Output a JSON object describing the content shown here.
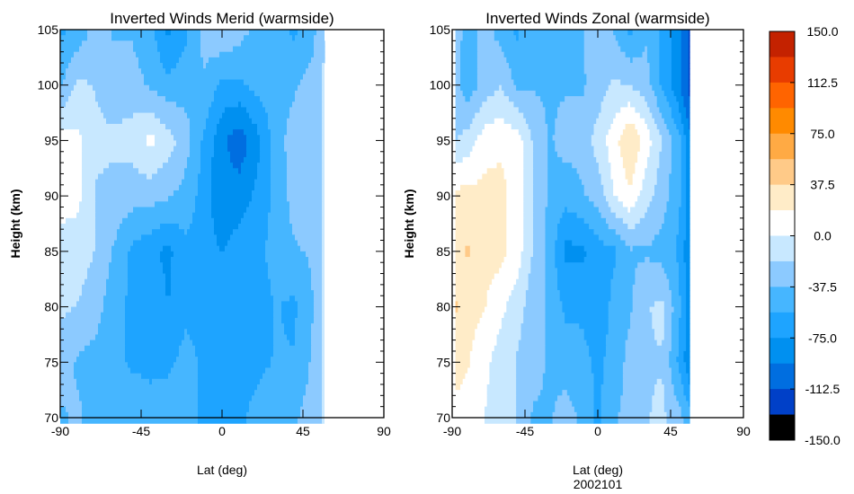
{
  "chart_data": [
    {
      "type": "heatmap",
      "title": "Inverted Winds Merid (warmside)",
      "xlabel": "Lat (deg)",
      "ylabel": "Height (km)",
      "xlim": [
        -90,
        90
      ],
      "ylim": [
        70,
        105
      ],
      "xticks": [
        "-90",
        "-45",
        "0",
        "45",
        "90"
      ],
      "yticks": [
        "70",
        "75",
        "80",
        "85",
        "90",
        "95",
        "100",
        "105"
      ],
      "lat": [
        -90,
        -80,
        -70,
        -60,
        -50,
        -40,
        -30,
        -20,
        -10,
        0,
        10,
        20,
        30,
        40,
        50,
        57
      ],
      "height": [
        105,
        100,
        95,
        90,
        85,
        80,
        75,
        70
      ],
      "values": [
        [
          -60,
          -50,
          -30,
          -40,
          -40,
          -50,
          -80,
          -60,
          -30,
          -20,
          -30,
          -45,
          -45,
          -60,
          -45,
          -20
        ],
        [
          -40,
          -15,
          -20,
          -30,
          -30,
          -40,
          -50,
          -45,
          -40,
          -60,
          -60,
          -50,
          -45,
          -40,
          -30,
          -15
        ],
        [
          10,
          5,
          -15,
          -15,
          -10,
          5,
          -10,
          -30,
          -60,
          -90,
          -105,
          -80,
          -45,
          -30,
          -30,
          -15
        ],
        [
          10,
          5,
          -20,
          -25,
          -30,
          -30,
          -35,
          -45,
          -65,
          -90,
          -85,
          -70,
          -50,
          -30,
          -30,
          -15
        ],
        [
          -10,
          -10,
          -20,
          -40,
          -60,
          -70,
          -80,
          -60,
          -70,
          -75,
          -65,
          -60,
          -50,
          -40,
          -35,
          -15
        ],
        [
          -15,
          -20,
          -30,
          -50,
          -60,
          -60,
          -75,
          -60,
          -65,
          -70,
          -60,
          -65,
          -55,
          -60,
          -40,
          -15
        ],
        [
          -30,
          -40,
          -45,
          -50,
          -60,
          -60,
          -60,
          -50,
          -60,
          -75,
          -65,
          -60,
          -55,
          -55,
          -35,
          -15
        ],
        [
          -40,
          -35,
          -45,
          -45,
          -40,
          -50,
          -45,
          -50,
          -60,
          -70,
          -60,
          -50,
          -45,
          -40,
          -30,
          -15
        ]
      ]
    },
    {
      "type": "heatmap",
      "title": "Inverted Winds Zonal (warmside)",
      "xlabel": "Lat (deg)",
      "subtitle": "2002101",
      "ylabel": "Height (km)",
      "xlim": [
        -90,
        90
      ],
      "ylim": [
        70,
        105
      ],
      "xticks": [
        "-90",
        "-45",
        "0",
        "45",
        "90"
      ],
      "yticks": [
        "70",
        "75",
        "80",
        "85",
        "90",
        "95",
        "100",
        "105"
      ],
      "lat": [
        -88,
        -80,
        -70,
        -60,
        -50,
        -40,
        -30,
        -20,
        -10,
        0,
        10,
        20,
        30,
        40,
        50,
        57
      ],
      "height": [
        105,
        100,
        95,
        90,
        85,
        80,
        75,
        70
      ],
      "values": [
        [
          -30,
          -45,
          -30,
          -45,
          -60,
          -40,
          -40,
          -40,
          -40,
          -25,
          -40,
          -60,
          -40,
          -60,
          -90,
          -120
        ],
        [
          -30,
          -50,
          -30,
          -20,
          -40,
          -40,
          -40,
          -40,
          -40,
          -30,
          -15,
          -20,
          -30,
          -60,
          -90,
          -120
        ],
        [
          -20,
          -10,
          10,
          15,
          10,
          -20,
          -40,
          -30,
          -30,
          -10,
          10,
          40,
          10,
          -20,
          -50,
          -90
        ],
        [
          25,
          25,
          25,
          25,
          10,
          -20,
          -40,
          -50,
          -40,
          -30,
          0,
          15,
          -10,
          -30,
          -50,
          -90
        ],
        [
          30,
          40,
          25,
          25,
          10,
          -20,
          -45,
          -80,
          -80,
          -65,
          -60,
          -40,
          -40,
          -45,
          -60,
          -90
        ],
        [
          40,
          25,
          20,
          5,
          -10,
          -30,
          -40,
          -60,
          -60,
          -70,
          -50,
          -40,
          -20,
          -15,
          -50,
          -90
        ],
        [
          30,
          20,
          5,
          -10,
          -20,
          -30,
          -40,
          -45,
          -50,
          -60,
          -50,
          -30,
          -20,
          -20,
          -60,
          -90
        ],
        [
          10,
          5,
          0,
          -10,
          -20,
          -40,
          -40,
          -30,
          -40,
          -60,
          -40,
          -30,
          -20,
          -15,
          -30,
          -50
        ]
      ]
    }
  ],
  "colorbar": {
    "range": [
      -150,
      150
    ],
    "labels": [
      "150.0",
      "112.5",
      "75.0",
      "37.5",
      "0.0",
      "-37.5",
      "-75.0",
      "-112.5",
      "-150.0"
    ],
    "colors_top_to_bottom": [
      "#c42200",
      "#e83c00",
      "#ff6400",
      "#ff8a00",
      "#ffaa44",
      "#ffca88",
      "#ffecc8",
      "#ffffff",
      "#c8e8ff",
      "#8ccaff",
      "#46b6ff",
      "#1ea4ff",
      "#0090f0",
      "#006ee0",
      "#0040c8",
      "#000000"
    ]
  }
}
